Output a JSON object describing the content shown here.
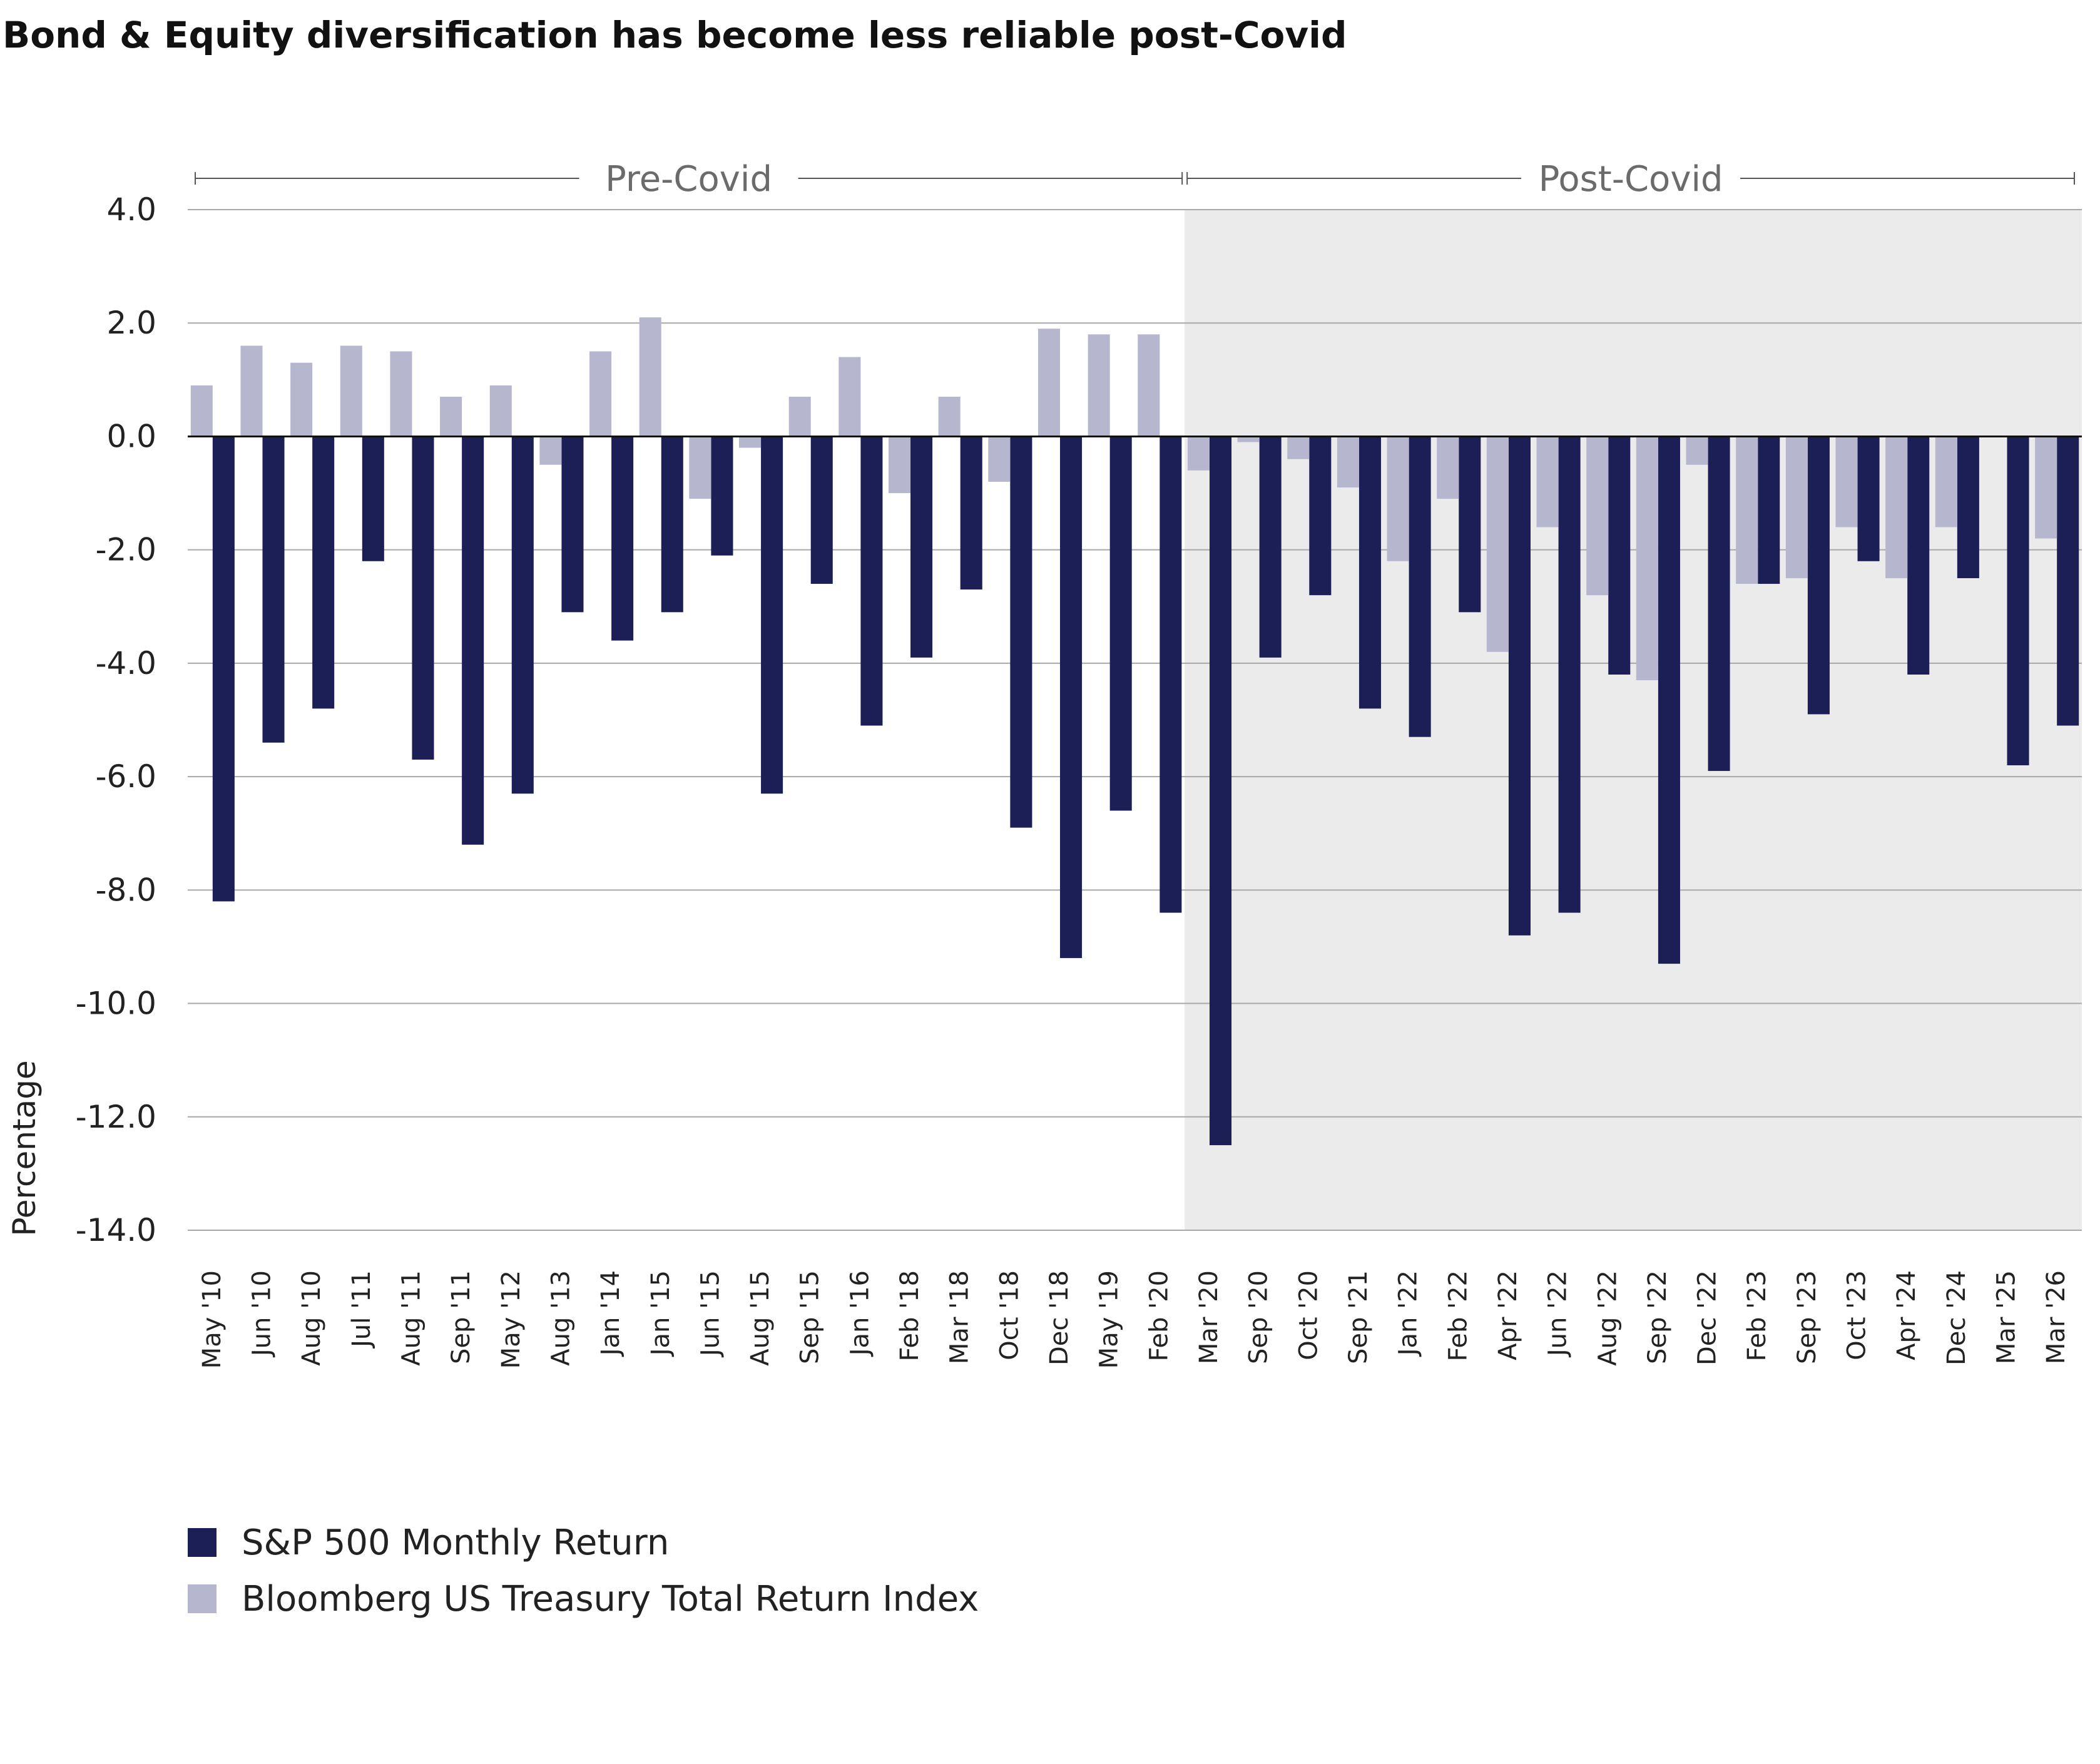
{
  "chart_data": {
    "type": "bar",
    "title": "Bond & Equity diversification has become less reliable post-Covid",
    "ylabel": "Percentage",
    "xlabel": "",
    "ylim": [
      -14,
      4
    ],
    "yticks": [
      4,
      2,
      0,
      -2,
      -4,
      -6,
      -8,
      -10,
      -12,
      -14
    ],
    "ytick_labels": [
      "4.0",
      "2.0",
      "0.0",
      "-2.0",
      "-4.0",
      "-6.0",
      "-8.0",
      "-10.0",
      "-12.0",
      "-14.0"
    ],
    "grid": true,
    "legend_position": "bottom-left",
    "categories": [
      "May '10",
      "Jun '10",
      "Aug '10",
      "Jul '11",
      "Aug '11",
      "Sep '11",
      "May '12",
      "Aug '13",
      "Jan '14",
      "Jan '15",
      "Jun '15",
      "Aug '15",
      "Sep '15",
      "Jan '16",
      "Feb '18",
      "Mar '18",
      "Oct '18",
      "Dec '18",
      "May '19",
      "Feb '20",
      "Mar '20",
      "Sep '20",
      "Oct '20",
      "Sep '21",
      "Jan '22",
      "Feb '22",
      "Apr '22",
      "Jun '22",
      "Aug '22",
      "Sep '22",
      "Dec '22",
      "Feb '23",
      "Sep '23",
      "Oct '23",
      "Apr '24",
      "Dec '24",
      "Mar '25",
      "Mar '26"
    ],
    "series": [
      {
        "name": "S&P 500 Monthly Return",
        "color": "#1b1f56",
        "values": [
          -8.2,
          -5.4,
          -4.8,
          -2.2,
          -5.7,
          -7.2,
          -6.3,
          -3.1,
          -3.6,
          -3.1,
          -2.1,
          -6.3,
          -2.6,
          -5.1,
          -3.9,
          -2.7,
          -6.9,
          -9.2,
          -6.6,
          -8.4,
          -12.5,
          -3.9,
          -2.8,
          -4.8,
          -5.3,
          -3.1,
          -8.8,
          -8.4,
          -4.2,
          -9.3,
          -5.9,
          -2.6,
          -4.9,
          -2.2,
          -4.2,
          -2.5,
          -5.8,
          -5.1
        ]
      },
      {
        "name": "Bloomberg US Treasury Total Return Index",
        "color": "#b6b6cf",
        "values": [
          0.9,
          1.6,
          1.3,
          1.6,
          1.5,
          0.7,
          0.9,
          -0.5,
          1.5,
          2.1,
          -1.1,
          -0.2,
          0.7,
          1.4,
          -1.0,
          0.7,
          -0.8,
          1.9,
          1.8,
          1.8,
          -0.6,
          -0.1,
          -0.4,
          -0.9,
          -2.2,
          -1.1,
          -3.8,
          -1.6,
          -2.8,
          -4.3,
          -0.5,
          -2.6,
          -2.5,
          -1.6,
          -2.5,
          -1.6,
          0.0,
          -1.8
        ]
      }
    ],
    "periods": [
      {
        "label": "Pre-Covid",
        "start": "May '10",
        "end": "Feb '20",
        "shaded": false
      },
      {
        "label": "Post-Covid",
        "start": "Mar '20",
        "end": "Mar '26",
        "shaded": true,
        "shade_color": "#ebebeb"
      }
    ]
  }
}
